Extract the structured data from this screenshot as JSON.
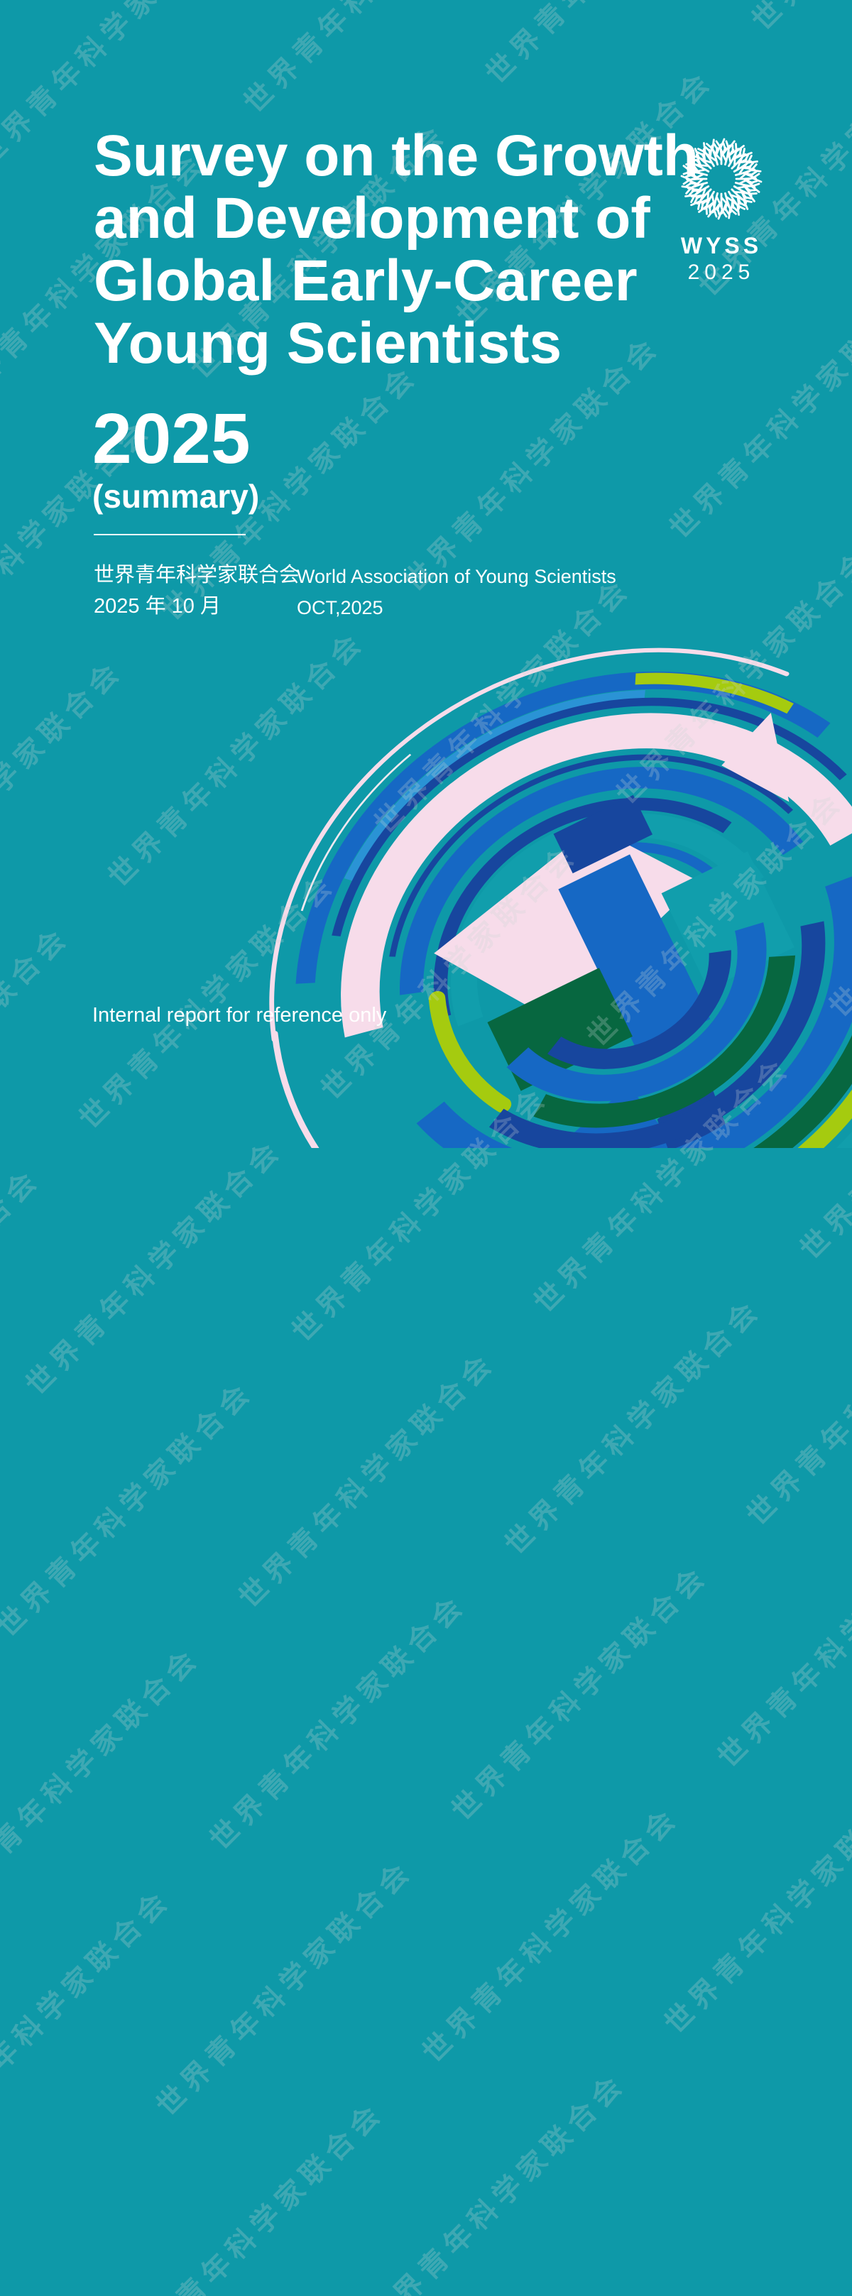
{
  "page": {
    "background_color": "#0E99A8",
    "watermark_text": "世界青年科学家联合会"
  },
  "title": {
    "lines": [
      "Survey on the Growth",
      "and Development of",
      "Global Early-Career",
      "Young Scientists"
    ],
    "year": "2025",
    "subtitle": "(summary)"
  },
  "logo": {
    "icon": "dandelion-burst-icon",
    "acronym": "WYSS",
    "year": "2025"
  },
  "publisher": {
    "org_cn": "世界青年科学家联合会",
    "date_cn": "2025 年 10 月",
    "org_en": "World Association of Young Scientists",
    "date_en": "OCT,2025"
  },
  "footer": {
    "note": "Internal report for reference only"
  },
  "colors": {
    "background": "#0E99A8",
    "royal_blue": "#1668C4",
    "navy": "#17469E",
    "light_blue": "#2A93D5",
    "pink": "#F7DCEA",
    "dark_green": "#076740",
    "lime": "#A5CB0F",
    "teal_band": "#119EAC",
    "text": "#FFFFFF"
  }
}
